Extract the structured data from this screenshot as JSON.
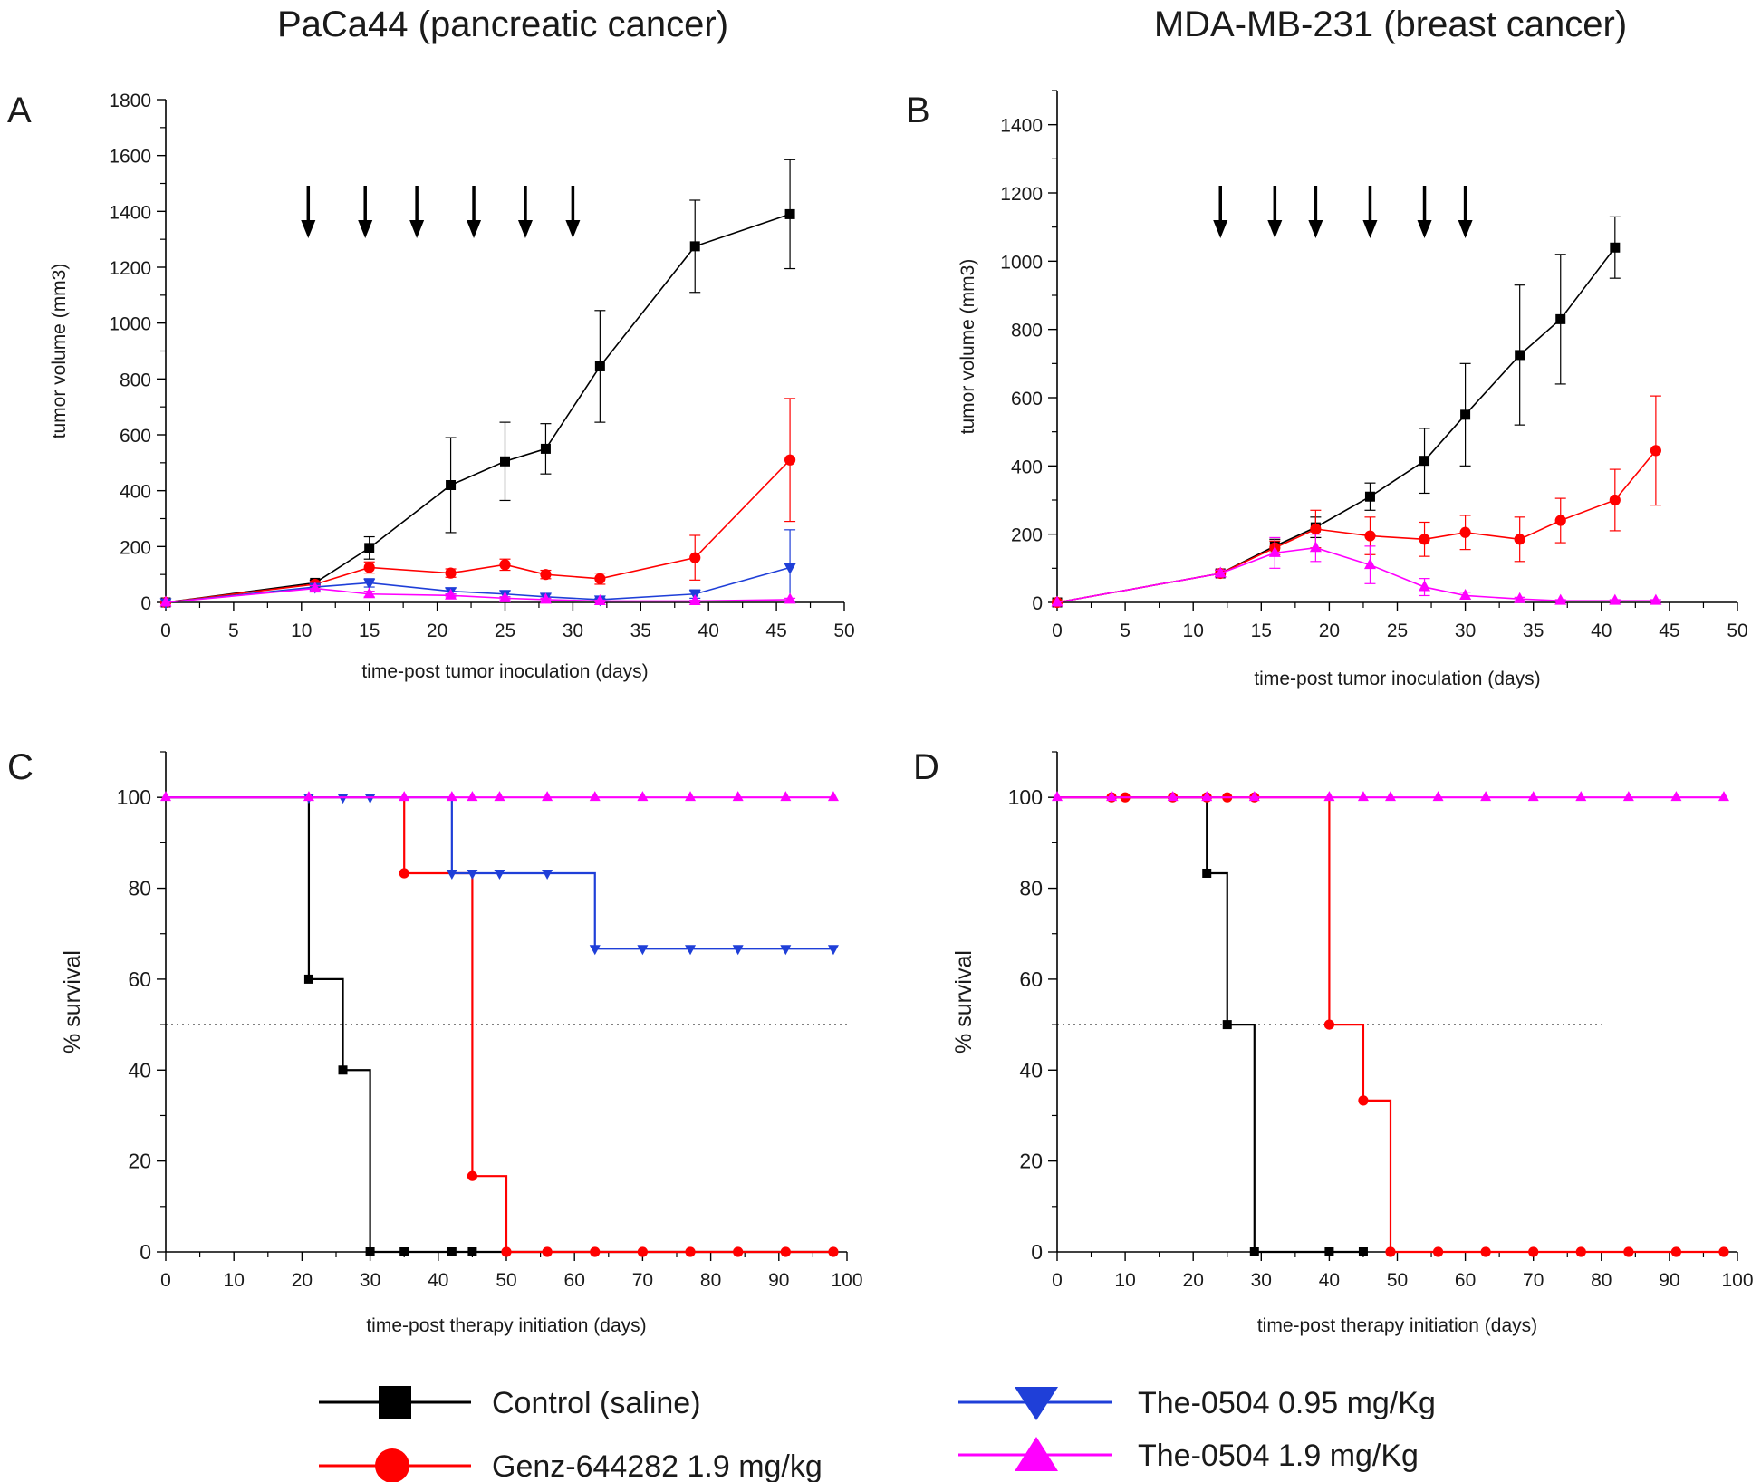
{
  "column_titles": {
    "left": "PaCa44 (pancreatic cancer)",
    "right": "MDA-MB-231 (breast cancer)"
  },
  "legend": [
    {
      "id": "control",
      "label": "Control (saline)",
      "color": "#000000",
      "marker": "square"
    },
    {
      "id": "genz",
      "label": "Genz-644282 1.9 mg/kg",
      "color": "#ff0000",
      "marker": "circle"
    },
    {
      "id": "the095",
      "label": "The-0504 0.95 mg/Kg",
      "color": "#1f3fd8",
      "marker": "triangle-down"
    },
    {
      "id": "the19",
      "label": "The-0504 1.9 mg/Kg",
      "color": "#ff00ff",
      "marker": "triangle-up"
    }
  ],
  "chart_data": [
    {
      "panel": "A",
      "type": "line",
      "xlabel": "time-post tumor inoculation (days)",
      "ylabel": "tumor volume (mm3)",
      "xlim": [
        0,
        50
      ],
      "ylim": [
        0,
        1800
      ],
      "xticks": [
        0,
        5,
        10,
        15,
        20,
        25,
        30,
        35,
        40,
        45,
        50
      ],
      "yticks": [
        0,
        200,
        400,
        600,
        800,
        1000,
        1200,
        1400,
        1600,
        1800
      ],
      "dosing_days": [
        10.5,
        14.7,
        18.5,
        22.7,
        26.5,
        30.0
      ],
      "series": [
        {
          "id": "control",
          "color": "#000000",
          "marker": "square",
          "x": [
            0,
            11,
            15,
            21,
            25,
            28,
            32,
            39,
            46
          ],
          "y": [
            0,
            70,
            195,
            420,
            505,
            550,
            845,
            1275,
            1390
          ],
          "err": [
            0,
            10,
            40,
            170,
            140,
            90,
            200,
            165,
            195
          ]
        },
        {
          "id": "genz",
          "color": "#ff0000",
          "marker": "circle",
          "x": [
            0,
            11,
            15,
            21,
            25,
            28,
            32,
            39,
            46
          ],
          "y": [
            0,
            65,
            125,
            105,
            135,
            100,
            85,
            160,
            510
          ],
          "err": [
            0,
            10,
            20,
            15,
            20,
            15,
            20,
            80,
            220
          ]
        },
        {
          "id": "the095",
          "color": "#1f3fd8",
          "marker": "triangle-down",
          "x": [
            0,
            11,
            15,
            21,
            25,
            28,
            32,
            39,
            46
          ],
          "y": [
            0,
            55,
            70,
            40,
            30,
            20,
            10,
            30,
            125
          ],
          "err": [
            0,
            10,
            15,
            10,
            10,
            10,
            5,
            15,
            135
          ]
        },
        {
          "id": "the19",
          "color": "#ff00ff",
          "marker": "triangle-up",
          "x": [
            0,
            11,
            15,
            21,
            25,
            28,
            32,
            39,
            46
          ],
          "y": [
            0,
            50,
            30,
            25,
            15,
            10,
            5,
            5,
            10
          ],
          "err": [
            0,
            10,
            10,
            5,
            5,
            5,
            3,
            3,
            5
          ]
        }
      ]
    },
    {
      "panel": "B",
      "type": "line",
      "xlabel": "time-post tumor inoculation (days)",
      "ylabel": "tumor volume (mm3)",
      "xlim": [
        0,
        50
      ],
      "ylim": [
        0,
        1500
      ],
      "xticks": [
        0,
        5,
        10,
        15,
        20,
        25,
        30,
        35,
        40,
        45,
        50
      ],
      "yticks": [
        0,
        200,
        400,
        600,
        800,
        1000,
        1200,
        1400
      ],
      "dosing_days": [
        12,
        16,
        19,
        23,
        27,
        30
      ],
      "series": [
        {
          "id": "control",
          "color": "#000000",
          "marker": "square",
          "x": [
            0,
            12,
            16,
            19,
            23,
            27,
            30,
            34,
            37,
            41
          ],
          "y": [
            0,
            85,
            165,
            220,
            310,
            415,
            550,
            725,
            830,
            1040
          ],
          "err": [
            0,
            10,
            20,
            30,
            40,
            95,
            150,
            205,
            190,
            90
          ]
        },
        {
          "id": "genz",
          "color": "#ff0000",
          "marker": "circle",
          "x": [
            0,
            12,
            16,
            19,
            23,
            27,
            30,
            34,
            37,
            41,
            44
          ],
          "y": [
            0,
            85,
            160,
            215,
            195,
            185,
            205,
            185,
            240,
            300,
            445
          ],
          "err": [
            0,
            10,
            20,
            55,
            55,
            50,
            50,
            65,
            65,
            90,
            160
          ]
        },
        {
          "id": "the19",
          "color": "#ff00ff",
          "marker": "triangle-up",
          "x": [
            0,
            12,
            16,
            19,
            23,
            27,
            30,
            34,
            37,
            41,
            44
          ],
          "y": [
            0,
            85,
            145,
            160,
            110,
            45,
            20,
            10,
            5,
            5,
            5
          ],
          "err": [
            0,
            10,
            45,
            40,
            55,
            25,
            10,
            5,
            3,
            3,
            3
          ]
        }
      ]
    },
    {
      "panel": "C",
      "type": "line",
      "subtype": "kaplan-meier",
      "xlabel": "time-post therapy initiation (days)",
      "ylabel": "% survival",
      "xlim": [
        0,
        100
      ],
      "ylim": [
        0,
        110
      ],
      "xticks": [
        0,
        10,
        20,
        30,
        40,
        50,
        60,
        70,
        80,
        90,
        100
      ],
      "yticks": [
        0,
        20,
        40,
        60,
        80,
        100
      ],
      "median_line": {
        "y": 50,
        "x": [
          0,
          100
        ]
      },
      "series": [
        {
          "id": "control",
          "color": "#000000",
          "marker": "square",
          "steps": [
            [
              0,
              100
            ],
            [
              21,
              60
            ],
            [
              26,
              40
            ],
            [
              30,
              0
            ],
            [
              98,
              0
            ]
          ],
          "markers": [
            [
              21,
              60
            ],
            [
              26,
              40
            ],
            [
              30,
              0
            ],
            [
              35,
              0
            ],
            [
              42,
              0
            ],
            [
              45,
              0
            ]
          ]
        },
        {
          "id": "genz",
          "color": "#ff0000",
          "marker": "circle",
          "steps": [
            [
              0,
              100
            ],
            [
              35,
              83.3
            ],
            [
              45,
              16.7
            ],
            [
              50,
              0
            ],
            [
              98,
              0
            ]
          ],
          "markers": [
            [
              35,
              83.3
            ],
            [
              45,
              16.7
            ],
            [
              50,
              0
            ],
            [
              56,
              0
            ],
            [
              63,
              0
            ],
            [
              70,
              0
            ],
            [
              77,
              0
            ],
            [
              84,
              0
            ],
            [
              91,
              0
            ],
            [
              98,
              0
            ]
          ]
        },
        {
          "id": "the095",
          "color": "#1f3fd8",
          "marker": "triangle-down",
          "steps": [
            [
              0,
              100
            ],
            [
              42,
              83.3
            ],
            [
              63,
              66.7
            ],
            [
              98,
              66.7
            ]
          ],
          "markers": [
            [
              21,
              100
            ],
            [
              26,
              100
            ],
            [
              30,
              100
            ],
            [
              42,
              83.3
            ],
            [
              45,
              83.3
            ],
            [
              49,
              83.3
            ],
            [
              56,
              83.3
            ],
            [
              63,
              66.7
            ],
            [
              70,
              66.7
            ],
            [
              77,
              66.7
            ],
            [
              84,
              66.7
            ],
            [
              91,
              66.7
            ],
            [
              98,
              66.7
            ]
          ]
        },
        {
          "id": "the19",
          "color": "#ff00ff",
          "marker": "triangle-up",
          "steps": [
            [
              0,
              100
            ],
            [
              98,
              100
            ]
          ],
          "markers": [
            [
              0,
              100
            ],
            [
              21,
              100
            ],
            [
              35,
              100
            ],
            [
              42,
              100
            ],
            [
              45,
              100
            ],
            [
              49,
              100
            ],
            [
              56,
              100
            ],
            [
              63,
              100
            ],
            [
              70,
              100
            ],
            [
              77,
              100
            ],
            [
              84,
              100
            ],
            [
              91,
              100
            ],
            [
              98,
              100
            ]
          ]
        }
      ]
    },
    {
      "panel": "D",
      "type": "line",
      "subtype": "kaplan-meier",
      "xlabel": "time-post therapy initiation (days)",
      "ylabel": "% survival",
      "xlim": [
        0,
        100
      ],
      "ylim": [
        0,
        110
      ],
      "xticks": [
        0,
        10,
        20,
        30,
        40,
        50,
        60,
        70,
        80,
        90,
        100
      ],
      "yticks": [
        0,
        20,
        40,
        60,
        80,
        100
      ],
      "median_line": {
        "y": 50,
        "x": [
          0,
          80
        ]
      },
      "series": [
        {
          "id": "control",
          "color": "#000000",
          "marker": "square",
          "steps": [
            [
              0,
              100
            ],
            [
              22,
              83.3
            ],
            [
              25,
              50
            ],
            [
              29,
              0
            ],
            [
              45,
              0
            ]
          ],
          "markers": [
            [
              22,
              83.3
            ],
            [
              25,
              50
            ],
            [
              29,
              0
            ],
            [
              40,
              0
            ],
            [
              45,
              0
            ]
          ]
        },
        {
          "id": "genz",
          "color": "#ff0000",
          "marker": "circle",
          "steps": [
            [
              0,
              100
            ],
            [
              40,
              50
            ],
            [
              45,
              33.3
            ],
            [
              49,
              0
            ],
            [
              98,
              0
            ]
          ],
          "markers": [
            [
              8,
              100
            ],
            [
              10,
              100
            ],
            [
              17,
              100
            ],
            [
              22,
              100
            ],
            [
              25,
              100
            ],
            [
              29,
              100
            ],
            [
              40,
              50
            ],
            [
              45,
              33.3
            ],
            [
              49,
              0
            ],
            [
              56,
              0
            ],
            [
              63,
              0
            ],
            [
              70,
              0
            ],
            [
              77,
              0
            ],
            [
              84,
              0
            ],
            [
              91,
              0
            ],
            [
              98,
              0
            ]
          ]
        },
        {
          "id": "the19",
          "color": "#ff00ff",
          "marker": "triangle-up",
          "steps": [
            [
              0,
              100
            ],
            [
              98,
              100
            ]
          ],
          "markers": [
            [
              0,
              100
            ],
            [
              8,
              100
            ],
            [
              17,
              100
            ],
            [
              22,
              100
            ],
            [
              29,
              100
            ],
            [
              40,
              100
            ],
            [
              45,
              100
            ],
            [
              49,
              100
            ],
            [
              56,
              100
            ],
            [
              63,
              100
            ],
            [
              70,
              100
            ],
            [
              77,
              100
            ],
            [
              84,
              100
            ],
            [
              91,
              100
            ],
            [
              98,
              100
            ]
          ]
        }
      ]
    }
  ]
}
